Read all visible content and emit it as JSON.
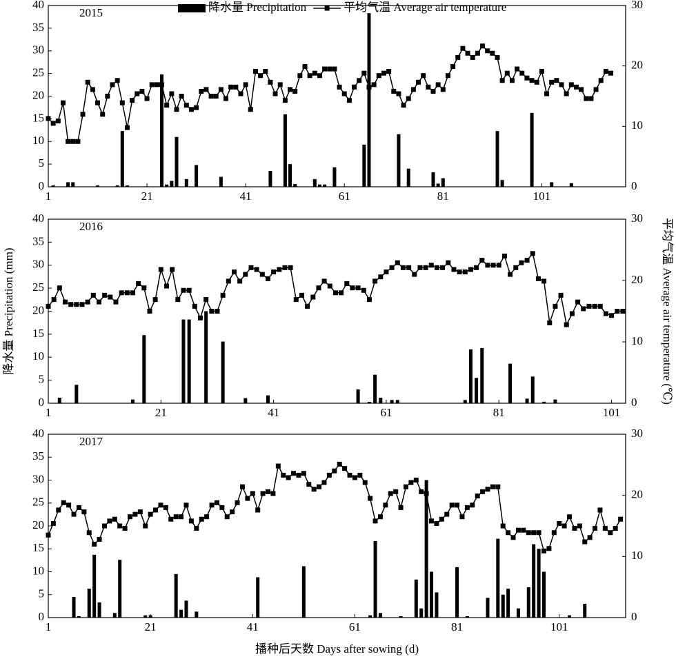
{
  "chart_data": [
    {
      "type": "combo",
      "title": "2015",
      "xlim": [
        1,
        118
      ],
      "xticks": [
        1,
        21,
        41,
        61,
        81,
        101
      ],
      "ylim": [
        0,
        40
      ],
      "yticks": [
        0,
        5,
        10,
        15,
        20,
        25,
        30,
        35,
        40
      ],
      "y2lim": [
        0,
        30
      ],
      "y2ticks": [
        0,
        10,
        20,
        30
      ],
      "series": [
        {
          "name": "降水量 Precipitation",
          "type": "bar",
          "color": "#000000",
          "x": [
            2,
            5,
            6,
            11,
            15,
            16,
            17,
            24,
            25,
            26,
            27,
            29,
            31,
            36,
            46,
            49,
            50,
            51,
            55,
            56,
            57,
            59,
            65,
            66,
            72,
            74,
            79,
            80,
            81,
            92,
            93,
            99,
            103,
            107
          ],
          "values": [
            0.3,
            1,
            1,
            0.3,
            0.3,
            12.3,
            0.3,
            24.8,
            0.5,
            1.3,
            11,
            1.7,
            4.8,
            2.2,
            3.5,
            16,
            5,
            0.6,
            1.7,
            0.5,
            0.5,
            4.3,
            9.3,
            38.3,
            11.6,
            4,
            3.2,
            0.7,
            1.9,
            12.3,
            1.5,
            16.3,
            1,
            0.8
          ]
        },
        {
          "name": "平均气温 Average air temperature",
          "type": "line",
          "axis": "y2",
          "color": "#000000",
          "x": [
            1,
            2,
            3,
            4,
            5,
            6,
            7,
            8,
            9,
            10,
            11,
            12,
            13,
            14,
            15,
            16,
            17,
            18,
            19,
            20,
            21,
            22,
            23,
            24,
            25,
            26,
            27,
            28,
            29,
            30,
            31,
            32,
            33,
            34,
            35,
            36,
            37,
            38,
            39,
            40,
            41,
            42,
            43,
            44,
            45,
            46,
            47,
            48,
            49,
            50,
            51,
            52,
            53,
            54,
            55,
            56,
            57,
            58,
            59,
            60,
            61,
            62,
            63,
            64,
            65,
            66,
            67,
            68,
            69,
            70,
            71,
            72,
            73,
            74,
            75,
            76,
            77,
            78,
            79,
            80,
            81,
            82,
            83,
            84,
            85,
            86,
            87,
            88,
            89,
            90,
            91,
            92,
            93,
            94,
            95,
            96,
            97,
            98,
            99,
            100,
            101,
            102,
            103,
            104,
            105,
            106,
            107,
            108,
            109,
            110,
            111,
            112,
            113,
            114,
            115
          ],
          "values": [
            11.3,
            10.5,
            10.9,
            13.9,
            7.5,
            7.5,
            7.5,
            12,
            17.3,
            16.1,
            13.9,
            12,
            15,
            16.9,
            17.6,
            13.9,
            9.8,
            14.3,
            15.4,
            15.8,
            14.6,
            16.9,
            16.9,
            16.9,
            13.5,
            15.4,
            12.8,
            15,
            13.5,
            12.8,
            13.1,
            15.8,
            16.1,
            15,
            15,
            16.1,
            14.6,
            16.5,
            16.5,
            15.4,
            16.9,
            12.8,
            19.1,
            18.4,
            19.1,
            17.3,
            15.4,
            16.9,
            14.3,
            16.1,
            15.8,
            18.4,
            19.9,
            18.4,
            18.8,
            18.4,
            19.5,
            19.5,
            19.5,
            16.5,
            15.4,
            14.3,
            16.5,
            17.6,
            18.8,
            16.5,
            16.9,
            18.4,
            18.8,
            19.1,
            15.8,
            15.4,
            13.5,
            14.6,
            16.1,
            17.3,
            18.4,
            16.5,
            15.8,
            16.9,
            16.1,
            18.4,
            19.9,
            21.4,
            22.9,
            22.1,
            21.4,
            22.1,
            23.3,
            22.5,
            22.1,
            21.4,
            17.6,
            18.8,
            17.6,
            19.5,
            18.8,
            18,
            17.6,
            17.3,
            19.1,
            15.4,
            17.3,
            17.6,
            16.9,
            15.4,
            16.9,
            16.5,
            16.1,
            14.6,
            14.6,
            16.1,
            17.6,
            19.1,
            18.8
          ]
        }
      ]
    },
    {
      "type": "combo",
      "title": "2016",
      "ylabel": "降水量 Precipitation (mm)",
      "y2label": "平均气温 Average air temperature (℃)",
      "xlim": [
        1,
        103.5
      ],
      "xticks": [
        1,
        21,
        41,
        61,
        81,
        101
      ],
      "ylim": [
        0,
        40
      ],
      "yticks": [
        0,
        5,
        10,
        15,
        20,
        25,
        30,
        35,
        40
      ],
      "y2lim": [
        0,
        30
      ],
      "y2ticks": [
        0,
        10,
        20,
        30
      ],
      "series": [
        {
          "type": "bar",
          "color": "#000000",
          "x": [
            3,
            6,
            16,
            18,
            25,
            26,
            29,
            32,
            36,
            40,
            56,
            58,
            59,
            60,
            62,
            63,
            75,
            76,
            77,
            78,
            83,
            86,
            87,
            89,
            91
          ],
          "values": [
            1.2,
            4,
            0.8,
            14.8,
            18.2,
            18.2,
            20,
            13.4,
            1.1,
            1.7,
            3,
            0.3,
            6.2,
            1.2,
            0.7,
            0.7,
            0.7,
            11.7,
            5.5,
            12,
            8.6,
            1,
            5.8,
            0.3,
            0.8
          ]
        },
        {
          "type": "line",
          "axis": "y2",
          "color": "#000000",
          "x": [
            1,
            2,
            3,
            4,
            5,
            6,
            7,
            8,
            9,
            10,
            11,
            12,
            13,
            14,
            15,
            16,
            17,
            18,
            19,
            20,
            21,
            22,
            23,
            24,
            25,
            26,
            27,
            28,
            29,
            30,
            31,
            32,
            33,
            34,
            35,
            36,
            37,
            38,
            39,
            40,
            41,
            42,
            43,
            44,
            45,
            46,
            47,
            48,
            49,
            50,
            51,
            52,
            53,
            54,
            55,
            56,
            57,
            58,
            59,
            60,
            61,
            62,
            63,
            64,
            65,
            66,
            67,
            68,
            69,
            70,
            71,
            72,
            73,
            74,
            75,
            76,
            77,
            78,
            79,
            80,
            81,
            82,
            83,
            84,
            85,
            86,
            87,
            88,
            89,
            90,
            91,
            92,
            93,
            94,
            95,
            96,
            97,
            98,
            99,
            100,
            101,
            102,
            103
          ],
          "values": [
            15.8,
            16.9,
            18.8,
            16.5,
            16.1,
            16.1,
            16.1,
            16.5,
            17.6,
            16.5,
            17.6,
            17.3,
            16.5,
            18,
            18,
            18,
            19.5,
            18.8,
            15,
            16.9,
            21.8,
            19.1,
            21.8,
            16.9,
            18.4,
            18.4,
            15.8,
            13.9,
            16.9,
            15,
            15,
            17.6,
            19.9,
            21.4,
            19.9,
            21,
            22.1,
            21.8,
            21,
            20.3,
            21.4,
            21.8,
            22.1,
            22.1,
            16.9,
            17.6,
            15.8,
            17.3,
            18.8,
            19.9,
            19.1,
            18,
            18,
            19.5,
            18.8,
            18.8,
            18.4,
            16.9,
            19.9,
            20.6,
            21.4,
            22.1,
            22.9,
            22.1,
            22.1,
            21,
            22.1,
            22.1,
            22.5,
            22.1,
            22.1,
            22.9,
            21.8,
            21.4,
            21.4,
            21.8,
            22.1,
            23.3,
            22.5,
            22.5,
            22.5,
            24,
            21,
            22.1,
            22.9,
            23.3,
            24.4,
            20.3,
            19.9,
            13.1,
            15.8,
            17.6,
            12.8,
            14.6,
            16.5,
            15.4,
            15.8,
            15.8,
            15.8,
            14.6,
            14.3,
            15,
            15
          ]
        }
      ]
    },
    {
      "type": "combo",
      "title": "2017",
      "xlabel": "播种后天数 Days after sowing (d)",
      "xlim": [
        1,
        114
      ],
      "xticks": [
        1,
        21,
        41,
        61,
        81,
        101
      ],
      "ylim": [
        0,
        40
      ],
      "yticks": [
        0,
        5,
        10,
        15,
        20,
        25,
        30,
        35,
        40
      ],
      "y2lim": [
        0,
        30
      ],
      "y2ticks": [
        0,
        10,
        20,
        30
      ],
      "series": [
        {
          "type": "bar",
          "color": "#000000",
          "x": [
            6,
            7,
            9,
            10,
            11,
            14,
            15,
            20,
            21,
            26,
            27,
            28,
            30,
            42,
            51,
            64,
            65,
            66,
            70,
            73,
            74,
            75,
            76,
            77,
            81,
            83,
            87,
            89,
            90,
            91,
            93,
            95,
            96,
            97,
            98,
            103,
            106
          ],
          "values": [
            4.5,
            0.3,
            6.3,
            13.7,
            3.3,
            1,
            12.6,
            0.5,
            0.5,
            9.5,
            1.7,
            3.7,
            1.3,
            8.8,
            11.2,
            0.5,
            16.7,
            1,
            0.3,
            8.3,
            2,
            30,
            10,
            5.5,
            11,
            0.3,
            4.3,
            17.2,
            5,
            6.3,
            2,
            6.6,
            16,
            15,
            10,
            0.5,
            3
          ]
        },
        {
          "type": "line",
          "axis": "y2",
          "color": "#000000",
          "x": [
            1,
            2,
            3,
            4,
            5,
            6,
            7,
            8,
            9,
            10,
            11,
            12,
            13,
            14,
            15,
            16,
            17,
            18,
            19,
            20,
            21,
            22,
            23,
            24,
            25,
            26,
            27,
            28,
            29,
            30,
            31,
            32,
            33,
            34,
            35,
            36,
            37,
            38,
            39,
            40,
            41,
            42,
            43,
            44,
            45,
            46,
            47,
            48,
            49,
            50,
            51,
            52,
            53,
            54,
            55,
            56,
            57,
            58,
            59,
            60,
            61,
            62,
            63,
            64,
            65,
            66,
            67,
            68,
            69,
            70,
            71,
            72,
            73,
            74,
            75,
            76,
            77,
            78,
            79,
            80,
            81,
            82,
            83,
            84,
            85,
            86,
            87,
            88,
            89,
            90,
            91,
            92,
            93,
            94,
            95,
            96,
            97,
            98,
            99,
            100,
            101,
            102,
            103,
            104,
            105,
            106,
            107,
            108,
            109,
            110,
            111,
            112,
            113
          ],
          "values": [
            13.5,
            15.4,
            17.6,
            18.8,
            18.4,
            16.9,
            18,
            17.3,
            13.9,
            12,
            12.8,
            15,
            15.8,
            16.1,
            15,
            14.6,
            16.5,
            16.9,
            17.3,
            15,
            16.9,
            17.6,
            18.4,
            18,
            16.1,
            16.5,
            16.5,
            18.4,
            15.8,
            14.6,
            16.1,
            16.5,
            18.4,
            18.8,
            18,
            16.5,
            17.3,
            18.8,
            21.4,
            19.5,
            20.3,
            17.6,
            20.3,
            20.6,
            20.3,
            24.8,
            23.3,
            22.9,
            23.6,
            23.3,
            23.6,
            21.8,
            21,
            21.4,
            22.1,
            23.3,
            24,
            25.1,
            24.4,
            23.3,
            22.9,
            23.3,
            22.1,
            19.5,
            15.8,
            16.5,
            18.4,
            20.3,
            20.6,
            18,
            21.4,
            22.1,
            22.5,
            20.6,
            20.3,
            15.8,
            15.4,
            16.1,
            16.9,
            18.4,
            18.4,
            16.5,
            18,
            18.4,
            19.9,
            20.6,
            21,
            21.4,
            21.4,
            15,
            13.9,
            13.1,
            14.3,
            14.3,
            13.9,
            13.9,
            13.9,
            10.9,
            11.3,
            13.9,
            15.4,
            15,
            16.5,
            14.6,
            15,
            12.4,
            13.1,
            14.6,
            17.6,
            14.6,
            13.9,
            14.6,
            16.1
          ]
        }
      ]
    }
  ]
}
